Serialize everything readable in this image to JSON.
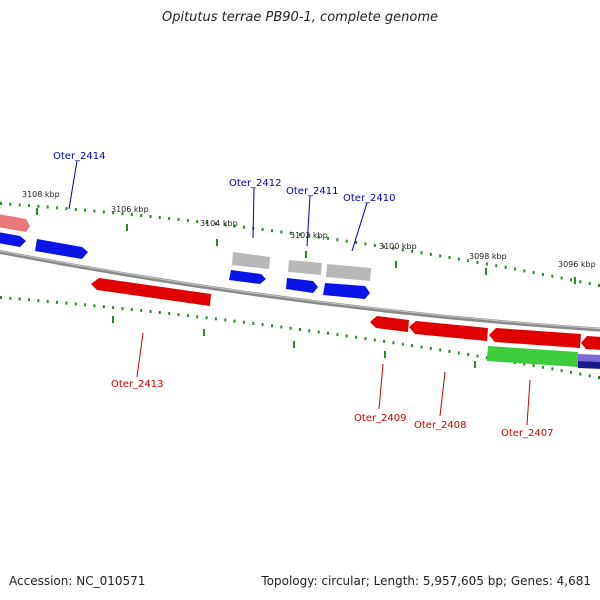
{
  "title": "Opitutus terrae PB90-1, complete genome",
  "footer": {
    "accession": "Accession: NC_010571",
    "summary": "Topology: circular; Length: 5,957,605 bp; Genes: 4,681"
  },
  "colors": {
    "forward_label": "#0000b0",
    "reverse_label": "#cc0000",
    "tick": "#2a8a2a",
    "backbone": "#8a8a8a",
    "blue": "#0a14e6",
    "red": "#e00000",
    "gray": "#b8b8b8",
    "pink": "#e8787a",
    "green": "#3ccc3c",
    "navy": "#1a1a8a"
  },
  "ticks": [
    {
      "label": "3108 kbp"
    },
    {
      "label": "3106 kbp"
    },
    {
      "label": "3104 kbp"
    },
    {
      "label": "3102 kbp"
    },
    {
      "label": "3100 kbp"
    },
    {
      "label": "3098 kbp"
    },
    {
      "label": "3096 kbp"
    }
  ],
  "genes": [
    {
      "label": "Oter_2414",
      "strand": "forward"
    },
    {
      "label": "Oter_2412",
      "strand": "forward"
    },
    {
      "label": "Oter_2411",
      "strand": "forward"
    },
    {
      "label": "Oter_2410",
      "strand": "forward"
    },
    {
      "label": "Oter_2413",
      "strand": "reverse"
    },
    {
      "label": "Oter_2409",
      "strand": "reverse"
    },
    {
      "label": "Oter_2408",
      "strand": "reverse"
    },
    {
      "label": "Oter_2407",
      "strand": "reverse"
    }
  ]
}
